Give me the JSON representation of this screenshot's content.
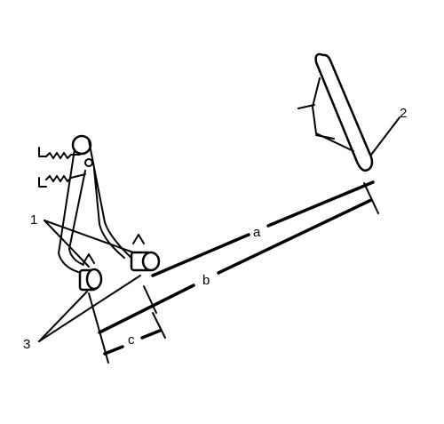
{
  "callouts": {
    "c1": "1",
    "c2": "2",
    "c3": "3"
  },
  "dimensions": {
    "a": "a",
    "b": "b",
    "c": "c"
  }
}
